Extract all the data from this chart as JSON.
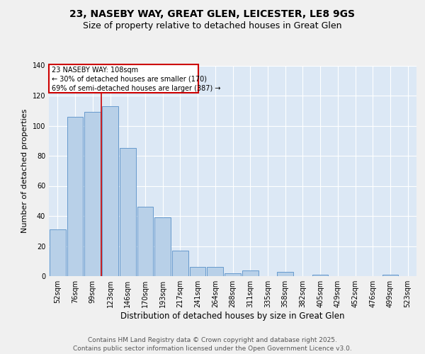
{
  "title1": "23, NASEBY WAY, GREAT GLEN, LEICESTER, LE8 9GS",
  "title2": "Size of property relative to detached houses in Great Glen",
  "xlabel": "Distribution of detached houses by size in Great Glen",
  "ylabel": "Number of detached properties",
  "bar_labels": [
    "52sqm",
    "76sqm",
    "99sqm",
    "123sqm",
    "146sqm",
    "170sqm",
    "193sqm",
    "217sqm",
    "241sqm",
    "264sqm",
    "288sqm",
    "311sqm",
    "335sqm",
    "358sqm",
    "382sqm",
    "405sqm",
    "429sqm",
    "452sqm",
    "476sqm",
    "499sqm",
    "523sqm"
  ],
  "bar_values": [
    31,
    106,
    109,
    113,
    85,
    46,
    39,
    17,
    6,
    6,
    2,
    4,
    0,
    3,
    0,
    1,
    0,
    0,
    0,
    1,
    0
  ],
  "bar_color": "#b8d0e8",
  "bar_edgecolor": "#6699cc",
  "fig_bg_color": "#f0f0f0",
  "plot_bg_color": "#dce8f5",
  "vline_x": 2.5,
  "vline_color": "#cc0000",
  "annotation_line1": "23 NASEBY WAY: 108sqm",
  "annotation_line2": "← 30% of detached houses are smaller (170)",
  "annotation_line3": "69% of semi-detached houses are larger (387) →",
  "annotation_box_edgecolor": "#cc0000",
  "annotation_box_facecolor": "white",
  "footer1": "Contains HM Land Registry data © Crown copyright and database right 2025.",
  "footer2": "Contains public sector information licensed under the Open Government Licence v3.0.",
  "ylim": [
    0,
    140
  ],
  "yticks": [
    0,
    20,
    40,
    60,
    80,
    100,
    120,
    140
  ],
  "title1_fontsize": 10,
  "title2_fontsize": 9,
  "xlabel_fontsize": 8.5,
  "ylabel_fontsize": 8,
  "tick_fontsize": 7,
  "annotation_fontsize": 7,
  "footer_fontsize": 6.5
}
